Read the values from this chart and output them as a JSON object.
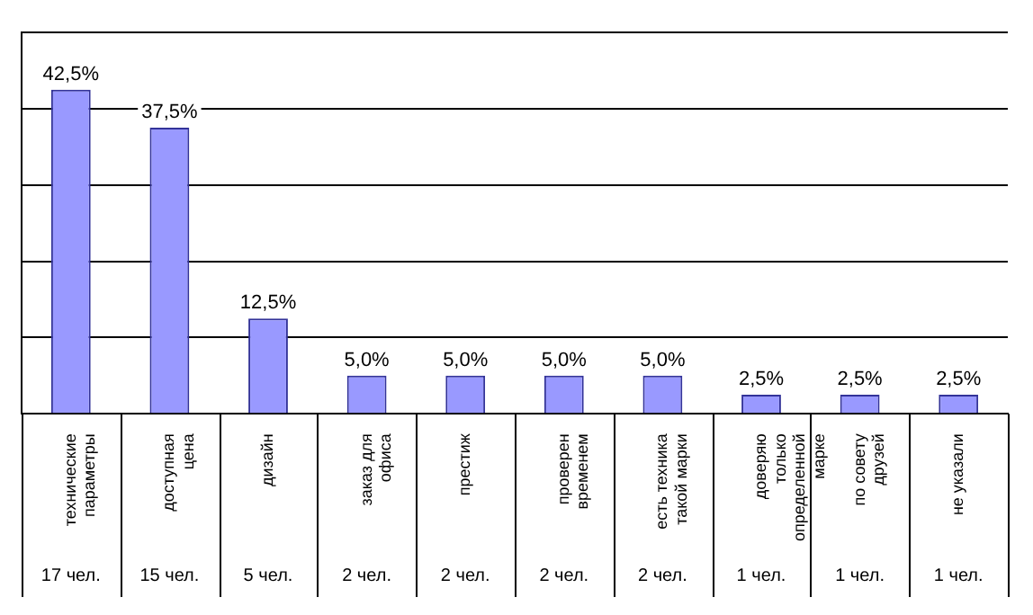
{
  "chart_data": {
    "type": "bar",
    "categories": [
      "технические параметры",
      "доступная цена",
      "дизайн",
      "заказ для офиса",
      "престиж",
      "проверен временем",
      "есть техника такой марки",
      "доверяю только определенной марке",
      "по совету друзей",
      "не указали"
    ],
    "values": [
      42.5,
      37.5,
      12.5,
      5.0,
      5.0,
      5.0,
      5.0,
      2.5,
      2.5,
      2.5
    ],
    "value_labels": [
      "42,5%",
      "37,5%",
      "12,5%",
      "5,0%",
      "5,0%",
      "5,0%",
      "5,0%",
      "2,5%",
      "2,5%",
      "2,5%"
    ],
    "color": "#9999ff",
    "ylim": [
      0,
      50
    ],
    "yticks": [
      {
        "value": 0,
        "label": null
      },
      {
        "value": 10,
        "label": null
      },
      {
        "value": 20,
        "label": null
      },
      {
        "value": 30,
        "label": null
      },
      {
        "value": 40,
        "label": null
      },
      {
        "value": 50,
        "label": null
      }
    ],
    "tick_labels": "x",
    "grid": "y",
    "legend": false,
    "annotations": [
      "17 чел.",
      "15 чел.",
      "5 чел.",
      "2 чел.",
      "2 чел.",
      "2 чел.",
      "2 чел.",
      "1 чел.",
      "1 чел.",
      "1 чел."
    ]
  }
}
